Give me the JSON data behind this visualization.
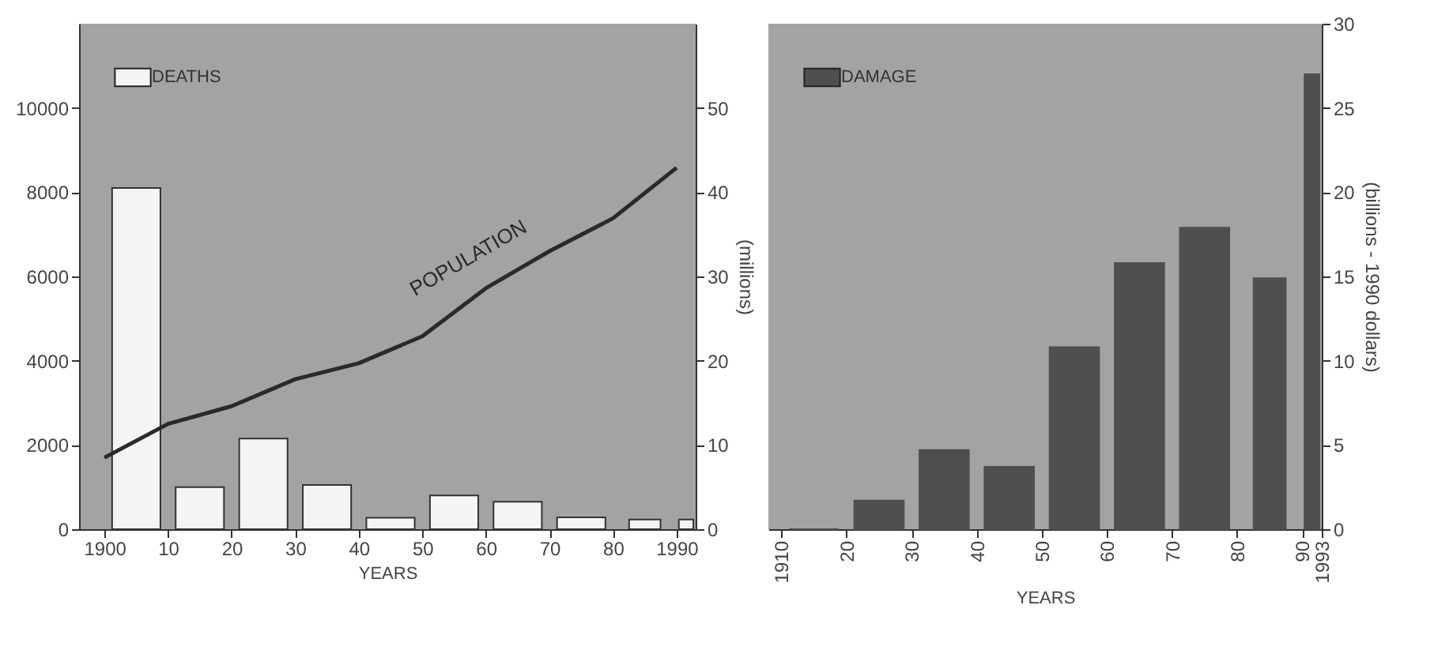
{
  "chart_data": [
    {
      "type": "bar",
      "xlabel": "YEARS",
      "y2label": "(millions)",
      "legend": "top left",
      "grid": false,
      "x": [
        1905,
        1915,
        1925,
        1935,
        1945,
        1955,
        1965,
        1975,
        1985,
        1991.5
      ],
      "xlim": [
        1896,
        1993
      ],
      "xticks": [
        1900,
        {
          "value": 1910,
          "label": "10"
        },
        {
          "value": 1920,
          "label": "20"
        },
        {
          "value": 1930,
          "label": "30"
        },
        {
          "value": 1940,
          "label": "40"
        },
        {
          "value": 1950,
          "label": "50"
        },
        {
          "value": 1960,
          "label": "60"
        },
        {
          "value": 1970,
          "label": "70"
        },
        {
          "value": 1980,
          "label": "80"
        },
        1990
      ],
      "ylim": [
        0,
        12000
      ],
      "yticks": [
        0,
        2000,
        4000,
        6000,
        8000,
        10000
      ],
      "y2lim": [
        0,
        60
      ],
      "y2ticks": [
        0,
        10,
        20,
        30,
        40,
        50
      ],
      "series": [
        {
          "name": "DEATHS",
          "color": "#f4f4f4",
          "values": [
            8100,
            1000,
            2150,
            1050,
            270,
            800,
            650,
            280,
            230,
            230
          ]
        },
        {
          "name": "POPULATION",
          "type": "line",
          "axis": "y2",
          "color": "#2a2a2a",
          "x": [
            1900,
            1910,
            1920,
            1930,
            1940,
            1950,
            1960,
            1970,
            1980,
            1990
          ],
          "values": [
            8.5,
            12.5,
            14.6,
            17.8,
            19.7,
            22.9,
            28.6,
            33.0,
            36.9,
            42.9
          ]
        }
      ]
    },
    {
      "type": "bar",
      "xlabel": "YEARS",
      "ylabel": "(billions - 1990 dollars)",
      "legend": "top left",
      "grid": false,
      "x": [
        1915,
        1925,
        1935,
        1945,
        1955,
        1965,
        1975,
        1985,
        1991.5
      ],
      "xlim": [
        1908,
        1993
      ],
      "xticks": [
        1910,
        {
          "value": 1920,
          "label": "20"
        },
        {
          "value": 1930,
          "label": "30"
        },
        {
          "value": 1940,
          "label": "40"
        },
        {
          "value": 1950,
          "label": "50"
        },
        {
          "value": 1960,
          "label": "60"
        },
        {
          "value": 1970,
          "label": "70"
        },
        {
          "value": 1980,
          "label": "80"
        },
        {
          "value": 1990,
          "label": "90"
        },
        1993
      ],
      "ylim": [
        0,
        30
      ],
      "yticks": [
        0,
        5,
        10,
        15,
        20,
        25,
        30
      ],
      "series": [
        {
          "name": "DAMAGE",
          "color": "#4f4f4f",
          "values": [
            0,
            1.7,
            4.7,
            3.7,
            10.8,
            15.8,
            17.9,
            14.9,
            27.0
          ]
        }
      ]
    }
  ]
}
